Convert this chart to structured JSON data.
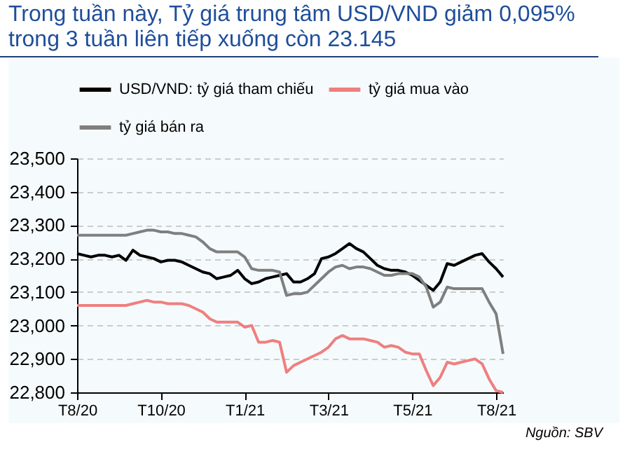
{
  "chart_data": {
    "type": "line",
    "title": "Trong tuần này, Tỷ giá trung tâm USD/VND giảm 0,095% trong 3 tuần liên tiếp xuống còn 23.145",
    "annotations": [
      "Nguồn: SBV"
    ],
    "categories": [
      "T8/20",
      null,
      null,
      null,
      null,
      null,
      null,
      null,
      null,
      null,
      null,
      null,
      "T10/20",
      null,
      null,
      null,
      null,
      null,
      null,
      null,
      null,
      null,
      null,
      null,
      "T1/21",
      null,
      null,
      null,
      null,
      null,
      null,
      null,
      null,
      null,
      null,
      null,
      "T3/21",
      null,
      null,
      null,
      null,
      null,
      null,
      null,
      null,
      null,
      null,
      null,
      "T5/21",
      null,
      null,
      null,
      null,
      null,
      null,
      null,
      null,
      null,
      null,
      null,
      "T8/21",
      null
    ],
    "ylim": [
      22800,
      23500
    ],
    "yticks": [
      {
        "value": 22800,
        "label": "22,800"
      },
      {
        "value": 22900,
        "label": "22,900"
      },
      {
        "value": 23000,
        "label": "23,000"
      },
      {
        "value": 23100,
        "label": "23,100"
      },
      {
        "value": 23200,
        "label": "23,200"
      },
      {
        "value": 23300,
        "label": "23,300"
      },
      {
        "value": 23400,
        "label": "23,400"
      },
      {
        "value": 23500,
        "label": "23,500"
      }
    ],
    "grid": "y",
    "legend": "top",
    "series": [
      {
        "name": "USD/VND: tỷ giá tham chiếu",
        "color": "#000000",
        "values": [
          23215,
          23210,
          23205,
          23210,
          23210,
          23205,
          23210,
          23195,
          23225,
          23210,
          23205,
          23200,
          23190,
          23195,
          23195,
          23190,
          23180,
          23170,
          23160,
          23155,
          23140,
          23145,
          23150,
          23165,
          23140,
          23125,
          23130,
          23140,
          23145,
          23150,
          23155,
          23130,
          23130,
          23140,
          23155,
          23200,
          23205,
          23215,
          23230,
          23245,
          23230,
          23220,
          23200,
          23180,
          23170,
          23165,
          23165,
          23160,
          23150,
          23135,
          23120,
          23105,
          23130,
          23185,
          23180,
          23190,
          23200,
          23210,
          23215,
          23190,
          23170,
          23145
        ]
      },
      {
        "name": "tỷ giá mua vào",
        "color": "#ef7f7f",
        "values": [
          23060,
          23060,
          23060,
          23060,
          23060,
          23060,
          23060,
          23060,
          23065,
          23070,
          23075,
          23070,
          23070,
          23065,
          23065,
          23065,
          23060,
          23050,
          23040,
          23020,
          23010,
          23010,
          23010,
          23010,
          22995,
          23000,
          22950,
          22950,
          22955,
          22950,
          22860,
          22880,
          22890,
          22900,
          22910,
          22920,
          22935,
          22960,
          22970,
          22960,
          22960,
          22960,
          22955,
          22950,
          22935,
          22940,
          22935,
          22920,
          22915,
          22915,
          22865,
          22820,
          22845,
          22890,
          22885,
          22890,
          22895,
          22900,
          22885,
          22840,
          22805,
          22800
        ]
      },
      {
        "name": "tỷ giá bán ra",
        "color": "#7f7f7f",
        "values": [
          23270,
          23270,
          23270,
          23270,
          23270,
          23270,
          23270,
          23270,
          23275,
          23280,
          23285,
          23285,
          23280,
          23280,
          23275,
          23275,
          23270,
          23265,
          23250,
          23230,
          23220,
          23220,
          23220,
          23220,
          23205,
          23170,
          23165,
          23165,
          23165,
          23160,
          23090,
          23095,
          23095,
          23100,
          23120,
          23140,
          23160,
          23175,
          23180,
          23170,
          23175,
          23175,
          23170,
          23160,
          23150,
          23150,
          23155,
          23155,
          23155,
          23145,
          23115,
          23055,
          23070,
          23115,
          23110,
          23110,
          23110,
          23110,
          23110,
          23070,
          23035,
          22915
        ]
      }
    ]
  }
}
